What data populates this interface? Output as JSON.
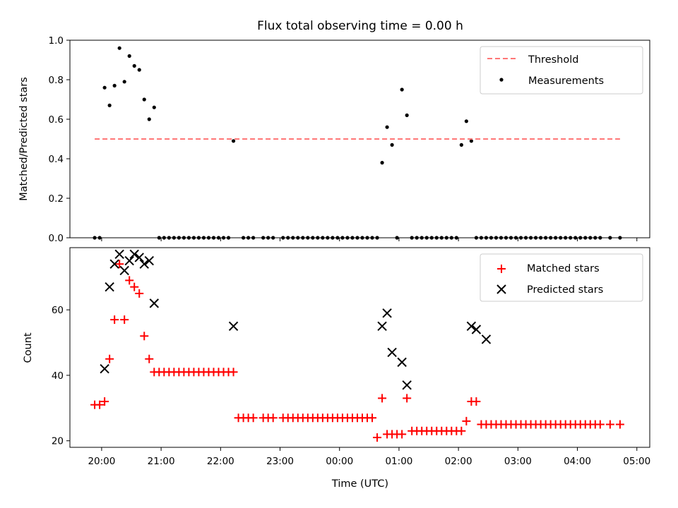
{
  "chart_data": [
    {
      "type": "scatter",
      "title": "Flux total observing time = 0.00 h",
      "xlabel": "",
      "ylabel": "Matched/Predicted stars",
      "xlim": [
        "19:28",
        "05:13"
      ],
      "ylim": [
        0,
        1.0
      ],
      "yticks": [
        "0.0",
        "0.2",
        "0.4",
        "0.6",
        "0.8",
        "1.0"
      ],
      "legend": {
        "position": "top-right",
        "entries": [
          "Threshold",
          "Measurements"
        ]
      },
      "threshold": {
        "name": "Threshold",
        "y": 0.5,
        "x_from": "19:53",
        "x_to": "04:43",
        "color": "#ff7777",
        "style": "dashed"
      },
      "series": [
        {
          "name": "Measurements",
          "marker": "dot",
          "color": "#000000",
          "x": [
            "19:53",
            "19:58",
            "20:03",
            "20:08",
            "20:13",
            "20:18",
            "20:23",
            "20:28",
            "20:33",
            "20:38",
            "20:43",
            "20:48",
            "20:53",
            "20:58",
            "21:03",
            "21:08",
            "21:13",
            "21:18",
            "21:23",
            "21:28",
            "21:33",
            "21:38",
            "21:43",
            "21:48",
            "21:53",
            "21:58",
            "22:03",
            "22:08",
            "22:13",
            "22:23",
            "22:28",
            "22:33",
            "22:43",
            "22:48",
            "22:53",
            "23:03",
            "23:08",
            "23:13",
            "23:18",
            "23:23",
            "23:28",
            "23:33",
            "23:38",
            "23:43",
            "23:48",
            "23:53",
            "23:58",
            "00:03",
            "00:08",
            "00:13",
            "00:18",
            "00:23",
            "00:28",
            "00:33",
            "00:38",
            "00:43",
            "00:48",
            "00:53",
            "00:58",
            "01:03",
            "01:08",
            "01:13",
            "01:18",
            "01:23",
            "01:28",
            "01:33",
            "01:38",
            "01:43",
            "01:48",
            "01:53",
            "01:58",
            "02:03",
            "02:08",
            "02:13",
            "02:18",
            "02:23",
            "02:28",
            "02:33",
            "02:38",
            "02:43",
            "02:48",
            "02:53",
            "02:58",
            "03:03",
            "03:08",
            "03:13",
            "03:18",
            "03:23",
            "03:28",
            "03:33",
            "03:38",
            "03:43",
            "03:48",
            "03:53",
            "03:58",
            "04:03",
            "04:08",
            "04:13",
            "04:18",
            "04:23",
            "04:33",
            "04:43"
          ],
          "y": [
            0,
            0,
            0.76,
            0.67,
            0.77,
            0.96,
            0.79,
            0.92,
            0.87,
            0.85,
            0.7,
            0.6,
            0.66,
            0,
            0,
            0,
            0,
            0,
            0,
            0,
            0,
            0,
            0,
            0,
            0,
            0,
            0,
            0,
            0.49,
            0,
            0,
            0,
            0,
            0,
            0,
            0,
            0,
            0,
            0,
            0,
            0,
            0,
            0,
            0,
            0,
            0,
            0,
            0,
            0,
            0,
            0,
            0,
            0,
            0,
            0,
            0.38,
            0.56,
            0.47,
            0,
            0.75,
            0.62,
            0,
            0,
            0,
            0,
            0,
            0,
            0,
            0,
            0,
            0,
            0.47,
            0.59,
            0.49,
            0,
            0,
            0,
            0,
            0,
            0,
            0,
            0,
            0,
            0,
            0,
            0,
            0,
            0,
            0,
            0,
            0,
            0,
            0,
            0,
            0,
            0,
            0,
            0,
            0,
            0,
            0,
            0
          ]
        }
      ]
    },
    {
      "type": "scatter",
      "title": "",
      "xlabel": "Time (UTC)",
      "ylabel": "Count",
      "xlim": [
        "19:28",
        "05:13"
      ],
      "ylim": [
        18,
        79
      ],
      "yticks": [
        "20",
        "40",
        "60"
      ],
      "xticks": [
        "20:00",
        "21:00",
        "22:00",
        "23:00",
        "00:00",
        "01:00",
        "02:00",
        "03:00",
        "04:00",
        "05:00"
      ],
      "legend": {
        "position": "top-right",
        "entries": [
          "Matched stars",
          "Predicted stars"
        ]
      },
      "series": [
        {
          "name": "Matched stars",
          "marker": "plus",
          "color": "#ff0000",
          "x": [
            "19:53",
            "19:58",
            "20:03",
            "20:08",
            "20:13",
            "20:18",
            "20:23",
            "20:28",
            "20:33",
            "20:38",
            "20:43",
            "20:48",
            "20:53",
            "20:58",
            "21:03",
            "21:08",
            "21:13",
            "21:18",
            "21:23",
            "21:28",
            "21:33",
            "21:38",
            "21:43",
            "21:48",
            "21:53",
            "21:58",
            "22:03",
            "22:08",
            "22:13",
            "22:18",
            "22:23",
            "22:28",
            "22:33",
            "22:43",
            "22:48",
            "22:53",
            "23:03",
            "23:08",
            "23:13",
            "23:18",
            "23:23",
            "23:28",
            "23:33",
            "23:38",
            "23:43",
            "23:48",
            "23:53",
            "23:58",
            "00:03",
            "00:08",
            "00:13",
            "00:18",
            "00:23",
            "00:28",
            "00:33",
            "00:38",
            "00:43",
            "00:48",
            "00:53",
            "00:58",
            "01:03",
            "01:08",
            "01:13",
            "01:18",
            "01:23",
            "01:28",
            "01:33",
            "01:38",
            "01:43",
            "01:48",
            "01:53",
            "01:58",
            "02:03",
            "02:08",
            "02:13",
            "02:18",
            "02:23",
            "02:28",
            "02:33",
            "02:38",
            "02:43",
            "02:48",
            "02:53",
            "02:58",
            "03:03",
            "03:08",
            "03:13",
            "03:18",
            "03:23",
            "03:28",
            "03:33",
            "03:38",
            "03:43",
            "03:48",
            "03:53",
            "03:58",
            "04:03",
            "04:08",
            "04:13",
            "04:18",
            "04:23",
            "04:33",
            "04:43"
          ],
          "y": [
            31,
            31,
            32,
            45,
            57,
            74,
            57,
            69,
            67,
            65,
            52,
            45,
            41,
            41,
            41,
            41,
            41,
            41,
            41,
            41,
            41,
            41,
            41,
            41,
            41,
            41,
            41,
            41,
            41,
            27,
            27,
            27,
            27,
            27,
            27,
            27,
            27,
            27,
            27,
            27,
            27,
            27,
            27,
            27,
            27,
            27,
            27,
            27,
            27,
            27,
            27,
            27,
            27,
            27,
            27,
            21,
            33,
            22,
            22,
            22,
            22,
            33,
            23,
            23,
            23,
            23,
            23,
            23,
            23,
            23,
            23,
            23,
            23,
            26,
            32,
            32,
            25,
            25,
            25,
            25,
            25,
            25,
            25,
            25,
            25,
            25,
            25,
            25,
            25,
            25,
            25,
            25,
            25,
            25,
            25,
            25,
            25,
            25,
            25,
            25,
            25,
            25,
            25
          ]
        },
        {
          "name": "Predicted stars",
          "marker": "x",
          "color": "#000000",
          "x": [
            "20:03",
            "20:08",
            "20:13",
            "20:18",
            "20:23",
            "20:28",
            "20:33",
            "20:38",
            "20:43",
            "20:48",
            "20:53",
            "22:13",
            "00:43",
            "00:48",
            "00:53",
            "01:03",
            "01:08",
            "02:13",
            "02:18",
            "02:28"
          ],
          "y": [
            42,
            67,
            74,
            77,
            72,
            75,
            77,
            76,
            74,
            75,
            62,
            55,
            55,
            59,
            47,
            44,
            37,
            55,
            54,
            51
          ]
        }
      ]
    }
  ]
}
